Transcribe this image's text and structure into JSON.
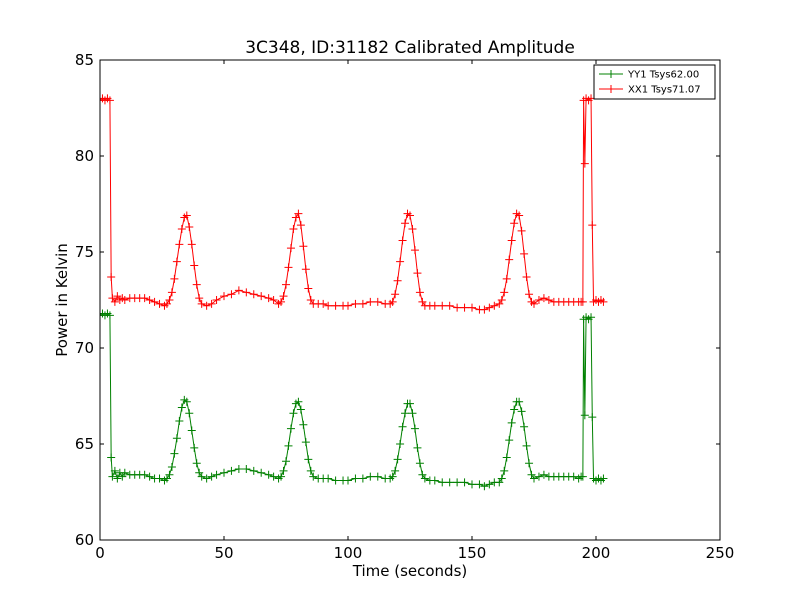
{
  "chart_data": {
    "type": "line",
    "title": "3C348, ID:31182 Calibrated Amplitude",
    "xlabel": "Time (seconds)",
    "ylabel": "Power in Kelvin",
    "xlim": [
      0,
      250
    ],
    "ylim": [
      60,
      85
    ],
    "xticks": [
      "0",
      "50",
      "100",
      "150",
      "200",
      "250"
    ],
    "yticks": [
      "60",
      "65",
      "70",
      "75",
      "80",
      "85"
    ],
    "grid": false,
    "legend_position": "top-right",
    "marker": "+",
    "series": [
      {
        "name": "YY1 Tsys62.00",
        "color": "#008000",
        "points": [
          [
            0,
            71.7
          ],
          [
            1,
            71.8
          ],
          [
            2,
            71.7
          ],
          [
            3,
            71.8
          ],
          [
            4,
            71.7
          ],
          [
            4.5,
            64.3
          ],
          [
            5,
            63.3
          ],
          [
            6,
            63.6
          ],
          [
            7,
            63.2
          ],
          [
            8,
            63.5
          ],
          [
            9,
            63.3
          ],
          [
            10,
            63.5
          ],
          [
            12,
            63.4
          ],
          [
            14,
            63.4
          ],
          [
            16,
            63.4
          ],
          [
            18,
            63.4
          ],
          [
            20,
            63.3
          ],
          [
            22,
            63.2
          ],
          [
            24,
            63.2
          ],
          [
            26,
            63.1
          ],
          [
            27,
            63.2
          ],
          [
            28,
            63.4
          ],
          [
            29,
            63.8
          ],
          [
            30,
            64.5
          ],
          [
            31,
            65.3
          ],
          [
            32,
            66.2
          ],
          [
            33,
            66.9
          ],
          [
            34,
            67.3
          ],
          [
            35,
            67.2
          ],
          [
            36,
            66.6
          ],
          [
            37,
            65.7
          ],
          [
            38,
            64.8
          ],
          [
            39,
            64.0
          ],
          [
            40,
            63.5
          ],
          [
            41,
            63.3
          ],
          [
            43,
            63.2
          ],
          [
            45,
            63.3
          ],
          [
            47,
            63.4
          ],
          [
            50,
            63.5
          ],
          [
            53,
            63.6
          ],
          [
            56,
            63.7
          ],
          [
            59,
            63.7
          ],
          [
            62,
            63.6
          ],
          [
            65,
            63.5
          ],
          [
            68,
            63.4
          ],
          [
            70,
            63.3
          ],
          [
            72,
            63.2
          ],
          [
            73,
            63.3
          ],
          [
            74,
            63.6
          ],
          [
            75,
            64.1
          ],
          [
            76,
            64.9
          ],
          [
            77,
            65.8
          ],
          [
            78,
            66.6
          ],
          [
            79,
            67.1
          ],
          [
            80,
            67.2
          ],
          [
            81,
            66.8
          ],
          [
            82,
            66.0
          ],
          [
            83,
            65.1
          ],
          [
            84,
            64.2
          ],
          [
            85,
            63.6
          ],
          [
            86,
            63.3
          ],
          [
            88,
            63.2
          ],
          [
            90,
            63.2
          ],
          [
            92,
            63.2
          ],
          [
            95,
            63.1
          ],
          [
            98,
            63.1
          ],
          [
            100,
            63.1
          ],
          [
            103,
            63.2
          ],
          [
            106,
            63.2
          ],
          [
            109,
            63.3
          ],
          [
            112,
            63.3
          ],
          [
            115,
            63.2
          ],
          [
            117,
            63.2
          ],
          [
            118,
            63.3
          ],
          [
            119,
            63.6
          ],
          [
            120,
            64.2
          ],
          [
            121,
            65.0
          ],
          [
            122,
            65.9
          ],
          [
            123,
            66.6
          ],
          [
            124,
            67.1
          ],
          [
            125,
            67.1
          ],
          [
            126,
            66.6
          ],
          [
            127,
            65.8
          ],
          [
            128,
            64.8
          ],
          [
            129,
            64.0
          ],
          [
            130,
            63.4
          ],
          [
            131,
            63.2
          ],
          [
            133,
            63.1
          ],
          [
            135,
            63.1
          ],
          [
            138,
            63.0
          ],
          [
            141,
            63.0
          ],
          [
            144,
            63.0
          ],
          [
            147,
            63.0
          ],
          [
            150,
            62.9
          ],
          [
            153,
            62.9
          ],
          [
            155,
            62.8
          ],
          [
            157,
            62.9
          ],
          [
            159,
            63.0
          ],
          [
            161,
            63.0
          ],
          [
            162,
            63.2
          ],
          [
            163,
            63.6
          ],
          [
            164,
            64.3
          ],
          [
            165,
            65.2
          ],
          [
            166,
            66.1
          ],
          [
            167,
            66.8
          ],
          [
            168,
            67.2
          ],
          [
            169,
            67.2
          ],
          [
            170,
            66.7
          ],
          [
            171,
            65.9
          ],
          [
            172,
            64.9
          ],
          [
            173,
            64.0
          ],
          [
            174,
            63.4
          ],
          [
            175,
            63.2
          ],
          [
            177,
            63.3
          ],
          [
            179,
            63.4
          ],
          [
            181,
            63.3
          ],
          [
            183,
            63.3
          ],
          [
            185,
            63.3
          ],
          [
            187,
            63.3
          ],
          [
            189,
            63.3
          ],
          [
            191,
            63.3
          ],
          [
            193,
            63.2
          ],
          [
            194,
            63.3
          ],
          [
            194.7,
            63.3
          ],
          [
            195,
            71.5
          ],
          [
            195.5,
            66.5
          ],
          [
            196,
            71.6
          ],
          [
            197,
            71.5
          ],
          [
            198,
            71.6
          ],
          [
            198.5,
            66.4
          ],
          [
            199,
            63.2
          ],
          [
            200,
            63.1
          ],
          [
            201,
            63.2
          ],
          [
            202,
            63.1
          ],
          [
            203,
            63.2
          ]
        ]
      },
      {
        "name": "XX1 Tsys71.07",
        "color": "#ff0000",
        "points": [
          [
            0,
            82.9
          ],
          [
            1,
            83.0
          ],
          [
            2,
            82.9
          ],
          [
            3,
            83.0
          ],
          [
            4,
            82.9
          ],
          [
            4.5,
            73.7
          ],
          [
            5,
            72.6
          ],
          [
            6,
            72.4
          ],
          [
            7,
            72.7
          ],
          [
            8,
            72.5
          ],
          [
            9,
            72.6
          ],
          [
            10,
            72.5
          ],
          [
            12,
            72.6
          ],
          [
            14,
            72.6
          ],
          [
            16,
            72.6
          ],
          [
            18,
            72.6
          ],
          [
            20,
            72.5
          ],
          [
            22,
            72.4
          ],
          [
            24,
            72.3
          ],
          [
            26,
            72.2
          ],
          [
            27,
            72.3
          ],
          [
            28,
            72.5
          ],
          [
            29,
            72.9
          ],
          [
            30,
            73.6
          ],
          [
            31,
            74.5
          ],
          [
            32,
            75.4
          ],
          [
            33,
            76.2
          ],
          [
            34,
            76.8
          ],
          [
            35,
            76.9
          ],
          [
            36,
            76.3
          ],
          [
            37,
            75.4
          ],
          [
            38,
            74.3
          ],
          [
            39,
            73.3
          ],
          [
            40,
            72.6
          ],
          [
            41,
            72.3
          ],
          [
            43,
            72.2
          ],
          [
            45,
            72.3
          ],
          [
            47,
            72.5
          ],
          [
            50,
            72.7
          ],
          [
            53,
            72.8
          ],
          [
            56,
            73.0
          ],
          [
            59,
            72.9
          ],
          [
            62,
            72.8
          ],
          [
            65,
            72.7
          ],
          [
            68,
            72.6
          ],
          [
            70,
            72.5
          ],
          [
            72,
            72.3
          ],
          [
            73,
            72.4
          ],
          [
            74,
            72.7
          ],
          [
            75,
            73.3
          ],
          [
            76,
            74.2
          ],
          [
            77,
            75.2
          ],
          [
            78,
            76.2
          ],
          [
            79,
            76.8
          ],
          [
            80,
            77.0
          ],
          [
            81,
            76.4
          ],
          [
            82,
            75.3
          ],
          [
            83,
            74.1
          ],
          [
            84,
            73.1
          ],
          [
            85,
            72.5
          ],
          [
            86,
            72.3
          ],
          [
            88,
            72.3
          ],
          [
            90,
            72.3
          ],
          [
            92,
            72.2
          ],
          [
            95,
            72.2
          ],
          [
            98,
            72.2
          ],
          [
            100,
            72.2
          ],
          [
            103,
            72.3
          ],
          [
            106,
            72.3
          ],
          [
            109,
            72.4
          ],
          [
            112,
            72.4
          ],
          [
            115,
            72.3
          ],
          [
            117,
            72.3
          ],
          [
            118,
            72.4
          ],
          [
            119,
            72.8
          ],
          [
            120,
            73.5
          ],
          [
            121,
            74.5
          ],
          [
            122,
            75.6
          ],
          [
            123,
            76.5
          ],
          [
            124,
            77.0
          ],
          [
            125,
            76.9
          ],
          [
            126,
            76.2
          ],
          [
            127,
            75.1
          ],
          [
            128,
            73.9
          ],
          [
            129,
            72.9
          ],
          [
            130,
            72.4
          ],
          [
            131,
            72.2
          ],
          [
            133,
            72.2
          ],
          [
            135,
            72.2
          ],
          [
            138,
            72.2
          ],
          [
            141,
            72.2
          ],
          [
            144,
            72.1
          ],
          [
            147,
            72.1
          ],
          [
            150,
            72.1
          ],
          [
            153,
            72.0
          ],
          [
            155,
            72.0
          ],
          [
            157,
            72.1
          ],
          [
            159,
            72.2
          ],
          [
            161,
            72.3
          ],
          [
            162,
            72.5
          ],
          [
            163,
            72.9
          ],
          [
            164,
            73.6
          ],
          [
            165,
            74.6
          ],
          [
            166,
            75.6
          ],
          [
            167,
            76.5
          ],
          [
            168,
            77.0
          ],
          [
            169,
            76.9
          ],
          [
            170,
            76.1
          ],
          [
            171,
            74.9
          ],
          [
            172,
            73.7
          ],
          [
            173,
            72.8
          ],
          [
            174,
            72.4
          ],
          [
            175,
            72.3
          ],
          [
            177,
            72.5
          ],
          [
            179,
            72.6
          ],
          [
            181,
            72.5
          ],
          [
            183,
            72.4
          ],
          [
            185,
            72.4
          ],
          [
            187,
            72.4
          ],
          [
            189,
            72.4
          ],
          [
            191,
            72.4
          ],
          [
            193,
            72.4
          ],
          [
            194,
            72.4
          ],
          [
            194.7,
            72.4
          ],
          [
            195,
            82.9
          ],
          [
            195.5,
            79.6
          ],
          [
            196,
            83.0
          ],
          [
            197,
            82.9
          ],
          [
            198,
            83.0
          ],
          [
            198.5,
            76.4
          ],
          [
            199,
            72.4
          ],
          [
            200,
            72.5
          ],
          [
            201,
            72.4
          ],
          [
            202,
            72.5
          ],
          [
            203,
            72.4
          ]
        ]
      }
    ]
  }
}
